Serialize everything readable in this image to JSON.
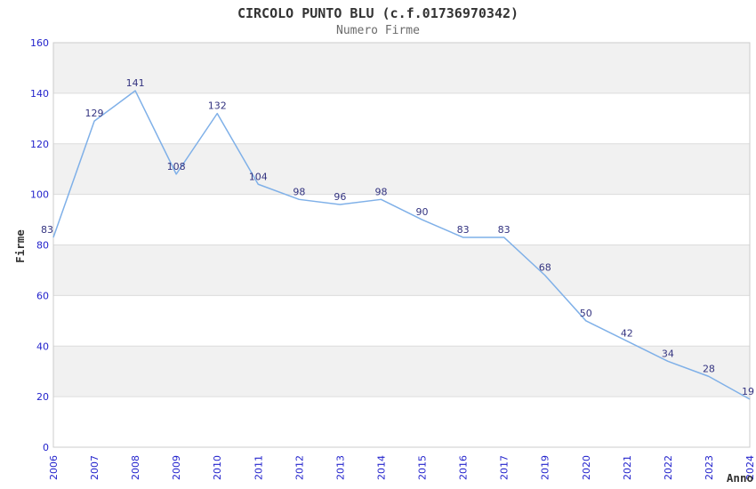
{
  "chart_data": {
    "type": "line",
    "title": "CIRCOLO PUNTO BLU (c.f.01736970342)",
    "subtitle": "Numero Firme",
    "xlabel": "Anno",
    "ylabel": "Firme",
    "categories": [
      "2006",
      "2007",
      "2008",
      "2009",
      "2010",
      "2011",
      "2012",
      "2013",
      "2014",
      "2015",
      "2016",
      "2017",
      "2019",
      "2020",
      "2021",
      "2022",
      "2023",
      "2024"
    ],
    "series": [
      {
        "name": "Numero Firme",
        "values": [
          83,
          129,
          141,
          108,
          132,
          104,
          98,
          96,
          98,
          90,
          83,
          83,
          68,
          50,
          42,
          34,
          28,
          19
        ]
      }
    ],
    "ylim": [
      0,
      160
    ],
    "yticks": [
      0,
      20,
      40,
      60,
      80,
      100,
      120,
      140,
      160
    ],
    "grid": "horizontal-bands-alternating",
    "legend": "none",
    "data_labels": "above-points",
    "colors": {
      "line": "#7fb0e8",
      "data_label": "#333380",
      "tick_label": "#2323cc",
      "band": "#f1f1f1",
      "band_alt": "#ffffff",
      "gridline": "#dcdcdc",
      "border": "#cccccc",
      "title": "#333333",
      "subtitle": "#6b6b6b",
      "axis_title": "#333333"
    }
  }
}
